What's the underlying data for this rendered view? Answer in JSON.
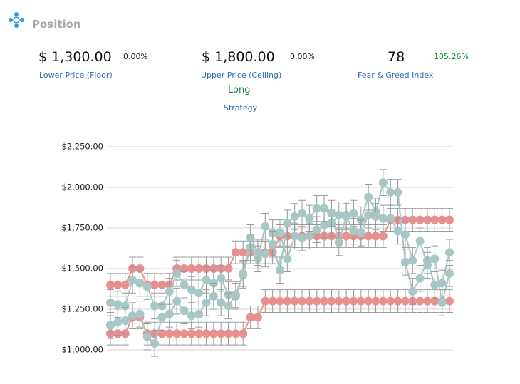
{
  "header": {
    "title": "Position"
  },
  "stats": [
    {
      "value": "$ 1,300.00",
      "change": "0.00%",
      "label": "Lower Price (Floor)"
    },
    {
      "value": "$ 1,800.00",
      "change": "0.00%",
      "label": "Upper Price (Ceiling)"
    },
    {
      "value": "78",
      "change": "105.26%",
      "label": "Fear & Greed Index"
    }
  ],
  "strategy": {
    "value": "Long",
    "label": "Strategy"
  },
  "chart_data": {
    "type": "line",
    "ylim": [
      1000,
      2250
    ],
    "yticks": [
      {
        "value": 1000,
        "label": "$1,000.00"
      },
      {
        "value": 1250,
        "label": "$1,250.00"
      },
      {
        "value": 1500,
        "label": "$1,500.00"
      },
      {
        "value": 1750,
        "label": "$1,750.00"
      },
      {
        "value": 2000,
        "label": "$2,000.00"
      },
      {
        "value": 2250,
        "label": "$2,250.00"
      }
    ],
    "grid": true,
    "series": [
      {
        "color": "#e8908f",
        "error": 70,
        "values": [
          1400,
          1400,
          1400,
          1500,
          1500,
          1400,
          1400,
          1400,
          1400,
          1500,
          1500,
          1500,
          1500,
          1500,
          1500,
          1500,
          1500,
          1600,
          1600,
          1600,
          1600,
          1600,
          1600,
          1700,
          1700,
          1700,
          1700,
          1700,
          1700,
          1700,
          1700,
          1700,
          1700,
          1700,
          1700,
          1700,
          1700,
          1700,
          1800,
          1800,
          1800,
          1800,
          1800,
          1800,
          1800,
          1800,
          1800
        ]
      },
      {
        "color": "#e8908f",
        "error": 70,
        "values": [
          1100,
          1100,
          1100,
          1200,
          1200,
          1100,
          1100,
          1100,
          1100,
          1100,
          1100,
          1100,
          1100,
          1100,
          1100,
          1100,
          1100,
          1100,
          1100,
          1200,
          1200,
          1300,
          1300,
          1300,
          1300,
          1300,
          1300,
          1300,
          1300,
          1300,
          1300,
          1300,
          1300,
          1300,
          1300,
          1300,
          1300,
          1300,
          1300,
          1300,
          1300,
          1300,
          1300,
          1300,
          1300,
          1300,
          1300
        ]
      },
      {
        "color": "#a9c6c6",
        "error": 80,
        "values": [
          1290,
          1280,
          1270,
          1430,
          1410,
          1390,
          1270,
          1270,
          1360,
          1470,
          1400,
          1370,
          1350,
          1430,
          1410,
          1440,
          1340,
          1330,
          1460,
          1630,
          1560,
          1760,
          1720,
          1720,
          1560,
          1700,
          1690,
          1700,
          1740,
          1770,
          1780,
          1830,
          1830,
          1840,
          1800,
          1940,
          1850,
          2030,
          1970,
          1970,
          1540,
          1360,
          1440,
          1550,
          1400,
          1410,
          1600
        ]
      },
      {
        "color": "#a9c6c6",
        "error": 80,
        "values": [
          1150,
          1170,
          1180,
          1210,
          1220,
          1080,
          1040,
          1200,
          1220,
          1300,
          1240,
          1210,
          1220,
          1290,
          1330,
          1290,
          1270,
          1340,
          1470,
          1690,
          1600,
          1590,
          1650,
          1490,
          1780,
          1820,
          1840,
          1810,
          1870,
          1870,
          1840,
          1660,
          1820,
          1730,
          1720,
          1830,
          1820,
          1810,
          1810,
          1730,
          1710,
          1550,
          1670,
          1520,
          1560,
          1290,
          1470
        ]
      }
    ]
  }
}
